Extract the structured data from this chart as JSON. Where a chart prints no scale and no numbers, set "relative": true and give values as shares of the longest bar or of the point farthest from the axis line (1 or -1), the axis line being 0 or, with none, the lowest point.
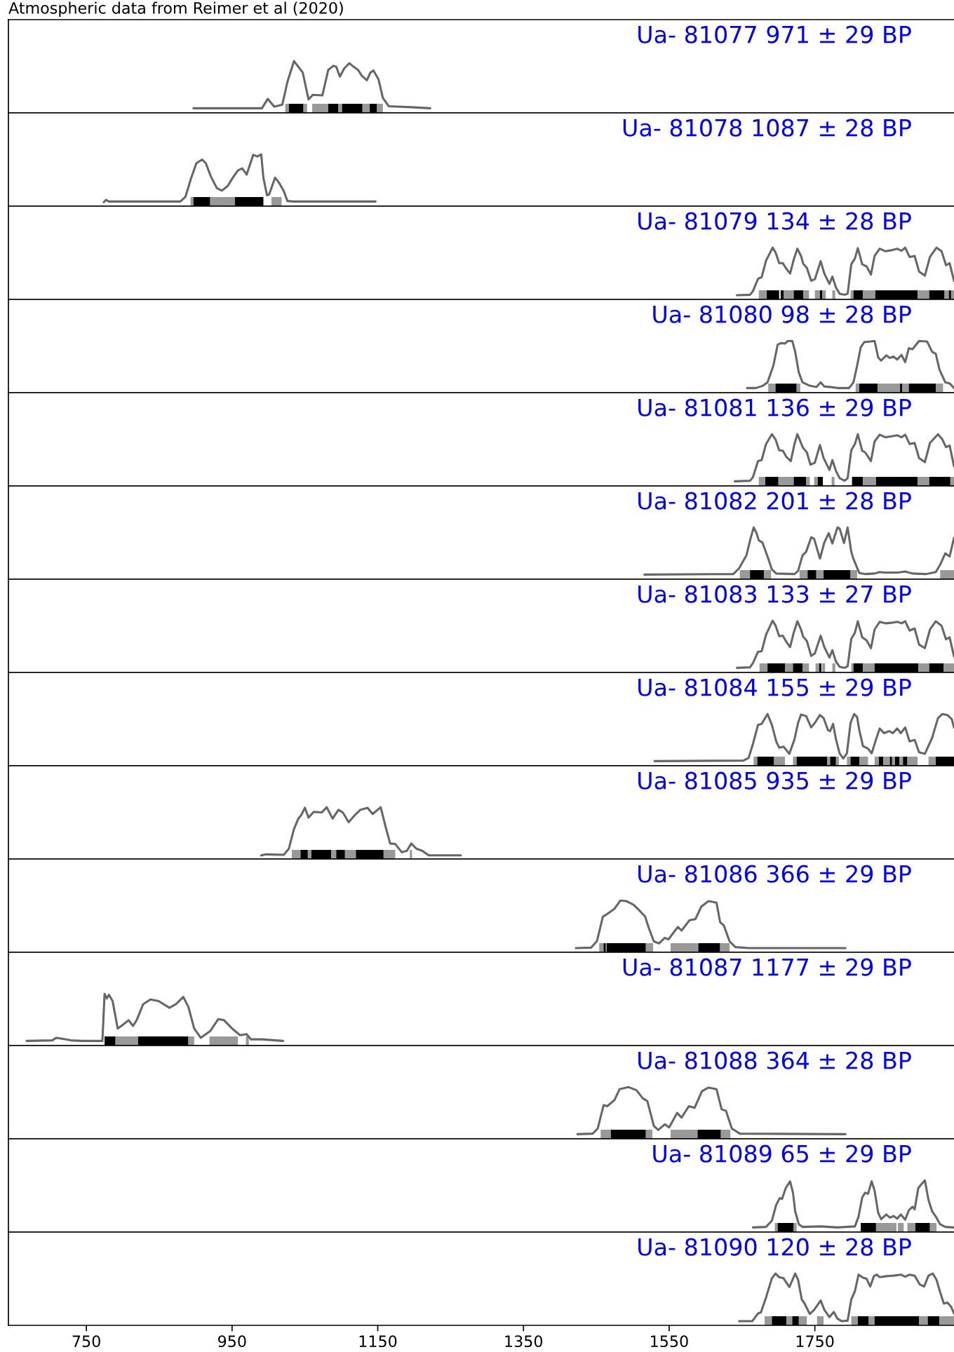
{
  "chart_data": [
    {
      "type": "line",
      "title": "Ua- 81077 971 ± 29 BP",
      "annotations": [
        "Atmospheric data from Reimer et al (2020)"
      ],
      "relative": true,
      "xlim": [
        643,
        1941
      ],
      "tick_labels": false,
      "color": "#666666",
      "x": [
        897,
        991,
        999,
        1008,
        1019,
        1026,
        1035,
        1041,
        1047,
        1055,
        1061,
        1074,
        1082,
        1089,
        1093,
        1098,
        1104,
        1111,
        1117,
        1123,
        1128,
        1135,
        1140,
        1144,
        1151,
        1157,
        1165,
        1196,
        1222
      ],
      "values": [
        0.09,
        0.09,
        0.27,
        0.12,
        0.16,
        0.6,
        1.0,
        0.89,
        0.78,
        0.26,
        0.35,
        0.34,
        0.83,
        0.91,
        0.89,
        0.7,
        0.86,
        0.96,
        0.89,
        0.83,
        0.72,
        0.63,
        0.78,
        0.82,
        0.65,
        0.29,
        0.13,
        0.11,
        0.09
      ],
      "bands": [
        {
          "axis": "x",
          "from": 1023,
          "to": 1028,
          "color": "#999999"
        },
        {
          "axis": "x",
          "from": 1028,
          "to": 1048,
          "color": "#000000"
        },
        {
          "axis": "x",
          "from": 1048,
          "to": 1053,
          "color": "#999999"
        },
        {
          "axis": "x",
          "from": 1060,
          "to": 1082,
          "color": "#999999"
        },
        {
          "axis": "x",
          "from": 1082,
          "to": 1096,
          "color": "#000000"
        },
        {
          "axis": "x",
          "from": 1096,
          "to": 1101,
          "color": "#999999"
        },
        {
          "axis": "x",
          "from": 1101,
          "to": 1129,
          "color": "#000000"
        },
        {
          "axis": "x",
          "from": 1129,
          "to": 1139,
          "color": "#999999"
        },
        {
          "axis": "x",
          "from": 1139,
          "to": 1149,
          "color": "#000000"
        },
        {
          "axis": "x",
          "from": 1149,
          "to": 1157,
          "color": "#999999"
        }
      ]
    },
    {
      "type": "line",
      "title": "Ua- 81078 1087 ± 28 BP",
      "relative": true,
      "xlim": [
        643,
        1941
      ],
      "tick_labels": false,
      "color": "#666666",
      "x": [
        774,
        777,
        781,
        838,
        879,
        886,
        894,
        901,
        909,
        914,
        921,
        929,
        936,
        944,
        951,
        958,
        964,
        970,
        974,
        979,
        985,
        990,
        993,
        998,
        1001,
        1009,
        1015,
        1021,
        1026,
        1034,
        1147
      ],
      "values": [
        0.08,
        0.12,
        0.09,
        0.09,
        0.09,
        0.18,
        0.55,
        0.83,
        0.9,
        0.83,
        0.57,
        0.35,
        0.3,
        0.39,
        0.55,
        0.69,
        0.73,
        0.61,
        0.78,
        0.99,
        0.96,
        1.0,
        0.55,
        0.21,
        0.23,
        0.55,
        0.44,
        0.29,
        0.1,
        0.09,
        0.09
      ],
      "bands": [
        {
          "axis": "x",
          "from": 893,
          "to": 897,
          "color": "#999999"
        },
        {
          "axis": "x",
          "from": 897,
          "to": 920,
          "color": "#000000"
        },
        {
          "axis": "x",
          "from": 920,
          "to": 954,
          "color": "#999999"
        },
        {
          "axis": "x",
          "from": 954,
          "to": 993,
          "color": "#000000"
        },
        {
          "axis": "x",
          "from": 1004,
          "to": 1018,
          "color": "#999999"
        }
      ]
    },
    {
      "type": "line",
      "title": "Ua- 81079 134 ± 28 BP",
      "relative": true,
      "xlim": [
        643,
        1941
      ],
      "tick_labels": false,
      "color": "#666666",
      "x": [
        1643,
        1661,
        1665,
        1672,
        1677,
        1683,
        1692,
        1696,
        1701,
        1706,
        1710,
        1716,
        1721,
        1726,
        1731,
        1734,
        1739,
        1745,
        1750,
        1758,
        1763,
        1770,
        1774,
        1779,
        1784,
        1791,
        1795,
        1800,
        1805,
        1809,
        1815,
        1821,
        1827,
        1832,
        1839,
        1847,
        1855,
        1863,
        1869,
        1874,
        1880,
        1887,
        1893,
        1901,
        1908,
        1917,
        1924,
        1930,
        1935,
        1941
      ],
      "values": [
        0.08,
        0.09,
        0.16,
        0.4,
        0.43,
        0.75,
        1.0,
        0.91,
        0.7,
        0.7,
        0.61,
        0.5,
        0.77,
        0.98,
        0.84,
        0.69,
        0.61,
        0.36,
        0.39,
        0.74,
        0.5,
        0.3,
        0.44,
        0.23,
        0.11,
        0.09,
        0.11,
        0.68,
        0.79,
        0.99,
        0.68,
        0.64,
        0.48,
        0.84,
        0.98,
        0.93,
        0.95,
        0.98,
        0.94,
        1.0,
        0.82,
        0.84,
        0.54,
        0.46,
        0.82,
        1.0,
        0.93,
        0.66,
        0.7,
        0.36
      ],
      "bands": [
        {
          "axis": "x",
          "from": 1673,
          "to": 1684,
          "color": "#999999"
        },
        {
          "axis": "x",
          "from": 1684,
          "to": 1701,
          "color": "#000000"
        },
        {
          "axis": "x",
          "from": 1703,
          "to": 1707,
          "color": "#000000"
        },
        {
          "axis": "x",
          "from": 1707,
          "to": 1721,
          "color": "#999999"
        },
        {
          "axis": "x",
          "from": 1721,
          "to": 1734,
          "color": "#000000"
        },
        {
          "axis": "x",
          "from": 1734,
          "to": 1742,
          "color": "#999999"
        },
        {
          "axis": "x",
          "from": 1750,
          "to": 1757,
          "color": "#999999"
        },
        {
          "axis": "x",
          "from": 1757,
          "to": 1760,
          "color": "#000000"
        },
        {
          "axis": "x",
          "from": 1760,
          "to": 1765,
          "color": "#999999"
        },
        {
          "axis": "x",
          "from": 1774,
          "to": 1778,
          "color": "#999999"
        },
        {
          "axis": "x",
          "from": 1799,
          "to": 1803,
          "color": "#999999"
        },
        {
          "axis": "x",
          "from": 1803,
          "to": 1816,
          "color": "#000000"
        },
        {
          "axis": "x",
          "from": 1816,
          "to": 1833,
          "color": "#999999"
        },
        {
          "axis": "x",
          "from": 1833,
          "to": 1891,
          "color": "#000000"
        },
        {
          "axis": "x",
          "from": 1891,
          "to": 1907,
          "color": "#999999"
        },
        {
          "axis": "x",
          "from": 1907,
          "to": 1928,
          "color": "#000000"
        },
        {
          "axis": "x",
          "from": 1928,
          "to": 1934,
          "color": "#999999"
        },
        {
          "axis": "x",
          "from": 1934,
          "to": 1937,
          "color": "#000000"
        },
        {
          "axis": "x",
          "from": 1937,
          "to": 1941,
          "color": "#999999"
        }
      ]
    },
    {
      "type": "line",
      "title": "Ua- 81080 98 ± 28 BP",
      "relative": true,
      "xlim": [
        643,
        1941
      ],
      "tick_labels": false,
      "color": "#666666",
      "x": [
        1657,
        1669,
        1678,
        1685,
        1693,
        1699,
        1704,
        1709,
        1713,
        1719,
        1723,
        1728,
        1733,
        1742,
        1752,
        1758,
        1763,
        1771,
        1781,
        1797,
        1803,
        1808,
        1813,
        1818,
        1826,
        1832,
        1837,
        1841,
        1848,
        1853,
        1858,
        1863,
        1869,
        1874,
        1879,
        1884,
        1893,
        1904,
        1911,
        1916,
        1921,
        1929,
        1935,
        1941
      ],
      "values": [
        0.09,
        0.09,
        0.13,
        0.2,
        0.52,
        0.93,
        0.96,
        0.95,
        1.0,
        1.0,
        0.79,
        0.39,
        0.2,
        0.14,
        0.11,
        0.2,
        0.12,
        0.11,
        0.09,
        0.09,
        0.2,
        0.52,
        0.88,
        0.98,
        0.99,
        1.0,
        0.68,
        0.62,
        0.72,
        0.67,
        0.7,
        0.64,
        0.73,
        0.59,
        0.86,
        0.84,
        1.0,
        0.99,
        0.79,
        0.75,
        0.45,
        0.2,
        0.18,
        0.09
      ],
      "bands": [
        {
          "axis": "x",
          "from": 1686,
          "to": 1696,
          "color": "#999999"
        },
        {
          "axis": "x",
          "from": 1696,
          "to": 1725,
          "color": "#000000"
        },
        {
          "axis": "x",
          "from": 1725,
          "to": 1730,
          "color": "#999999"
        },
        {
          "axis": "x",
          "from": 1806,
          "to": 1811,
          "color": "#999999"
        },
        {
          "axis": "x",
          "from": 1811,
          "to": 1836,
          "color": "#000000"
        },
        {
          "axis": "x",
          "from": 1836,
          "to": 1867,
          "color": "#999999"
        },
        {
          "axis": "x",
          "from": 1867,
          "to": 1870,
          "color": "#000000"
        },
        {
          "axis": "x",
          "from": 1870,
          "to": 1879,
          "color": "#999999"
        },
        {
          "axis": "x",
          "from": 1879,
          "to": 1916,
          "color": "#000000"
        },
        {
          "axis": "x",
          "from": 1916,
          "to": 1926,
          "color": "#999999"
        }
      ]
    },
    {
      "type": "line",
      "title": "Ua- 81081 136 ± 29 BP",
      "relative": true,
      "xlim": [
        643,
        1941
      ],
      "tick_labels": false,
      "color": "#666666",
      "x": [
        1640,
        1661,
        1665,
        1672,
        1677,
        1683,
        1691,
        1696,
        1701,
        1706,
        1711,
        1717,
        1722,
        1726,
        1731,
        1734,
        1739,
        1744,
        1750,
        1757,
        1762,
        1770,
        1774,
        1779,
        1784,
        1791,
        1795,
        1800,
        1805,
        1809,
        1815,
        1819,
        1827,
        1832,
        1839,
        1847,
        1855,
        1863,
        1869,
        1874,
        1880,
        1887,
        1893,
        1901,
        1908,
        1919,
        1925,
        1930,
        1935,
        1941
      ],
      "values": [
        0.09,
        0.1,
        0.17,
        0.48,
        0.5,
        0.81,
        1.0,
        0.9,
        0.69,
        0.68,
        0.56,
        0.48,
        0.81,
        1.0,
        0.83,
        0.73,
        0.65,
        0.41,
        0.45,
        0.79,
        0.54,
        0.31,
        0.5,
        0.29,
        0.15,
        0.1,
        0.15,
        0.69,
        0.81,
        1.0,
        0.68,
        0.65,
        0.48,
        0.86,
        0.99,
        0.94,
        0.96,
        0.98,
        0.94,
        0.99,
        0.81,
        0.83,
        0.54,
        0.46,
        0.83,
        1.0,
        0.9,
        0.75,
        0.78,
        0.38
      ],
      "bands": [
        {
          "axis": "x",
          "from": 1673,
          "to": 1682,
          "color": "#999999"
        },
        {
          "axis": "x",
          "from": 1682,
          "to": 1700,
          "color": "#000000"
        },
        {
          "axis": "x",
          "from": 1700,
          "to": 1721,
          "color": "#999999"
        },
        {
          "axis": "x",
          "from": 1721,
          "to": 1738,
          "color": "#000000"
        },
        {
          "axis": "x",
          "from": 1738,
          "to": 1743,
          "color": "#999999"
        },
        {
          "axis": "x",
          "from": 1749,
          "to": 1754,
          "color": "#999999"
        },
        {
          "axis": "x",
          "from": 1754,
          "to": 1761,
          "color": "#000000"
        },
        {
          "axis": "x",
          "from": 1773,
          "to": 1777,
          "color": "#999999"
        },
        {
          "axis": "x",
          "from": 1801,
          "to": 1816,
          "color": "#000000"
        },
        {
          "axis": "x",
          "from": 1816,
          "to": 1834,
          "color": "#999999"
        },
        {
          "axis": "x",
          "from": 1834,
          "to": 1891,
          "color": "#000000"
        },
        {
          "axis": "x",
          "from": 1891,
          "to": 1907,
          "color": "#999999"
        },
        {
          "axis": "x",
          "from": 1907,
          "to": 1936,
          "color": "#000000"
        },
        {
          "axis": "x",
          "from": 1936,
          "to": 1941,
          "color": "#999999"
        }
      ]
    },
    {
      "type": "line",
      "title": "Ua- 81082 201 ± 28 BP",
      "relative": true,
      "xlim": [
        643,
        1941
      ],
      "tick_labels": false,
      "color": "#666666",
      "x": [
        1516,
        1638,
        1646,
        1656,
        1662,
        1666,
        1670,
        1673,
        1678,
        1685,
        1691,
        1697,
        1722,
        1727,
        1733,
        1738,
        1745,
        1749,
        1757,
        1763,
        1769,
        1774,
        1781,
        1784,
        1790,
        1795,
        1800,
        1803,
        1811,
        1819,
        1832,
        1839,
        1845,
        1864,
        1874,
        1884,
        1903,
        1916,
        1922,
        1929,
        1935,
        1941
      ],
      "values": [
        0.09,
        0.1,
        0.21,
        0.46,
        0.8,
        1.0,
        0.89,
        0.75,
        0.71,
        0.44,
        0.19,
        0.11,
        0.1,
        0.16,
        0.46,
        0.53,
        0.81,
        0.78,
        0.4,
        0.71,
        0.89,
        0.69,
        1.0,
        0.98,
        0.7,
        1.0,
        0.53,
        0.39,
        0.12,
        0.1,
        0.11,
        0.14,
        0.13,
        0.13,
        0.15,
        0.11,
        0.1,
        0.14,
        0.28,
        0.5,
        0.44,
        0.8
      ],
      "bands": [
        {
          "axis": "x",
          "from": 1647,
          "to": 1661,
          "color": "#999999"
        },
        {
          "axis": "x",
          "from": 1661,
          "to": 1680,
          "color": "#000000"
        },
        {
          "axis": "x",
          "from": 1680,
          "to": 1690,
          "color": "#999999"
        },
        {
          "axis": "x",
          "from": 1729,
          "to": 1740,
          "color": "#999999"
        },
        {
          "axis": "x",
          "from": 1740,
          "to": 1752,
          "color": "#000000"
        },
        {
          "axis": "x",
          "from": 1752,
          "to": 1762,
          "color": "#999999"
        },
        {
          "axis": "x",
          "from": 1762,
          "to": 1799,
          "color": "#000000"
        },
        {
          "axis": "x",
          "from": 1799,
          "to": 1808,
          "color": "#999999"
        },
        {
          "axis": "x",
          "from": 1922,
          "to": 1941,
          "color": "#999999"
        }
      ]
    },
    {
      "type": "line",
      "title": "Ua- 81083 133 ± 27 BP",
      "relative": true,
      "xlim": [
        643,
        1941
      ],
      "tick_labels": false,
      "color": "#666666",
      "x": [
        1643,
        1661,
        1665,
        1672,
        1677,
        1683,
        1692,
        1696,
        1701,
        1706,
        1711,
        1716,
        1721,
        1726,
        1731,
        1734,
        1739,
        1745,
        1750,
        1758,
        1763,
        1770,
        1774,
        1779,
        1784,
        1791,
        1795,
        1800,
        1805,
        1809,
        1815,
        1821,
        1827,
        1832,
        1839,
        1847,
        1855,
        1863,
        1869,
        1874,
        1880,
        1887,
        1893,
        1901,
        1908,
        1916,
        1924,
        1930,
        1935,
        1941
      ],
      "values": [
        0.09,
        0.1,
        0.18,
        0.4,
        0.41,
        0.73,
        1.0,
        0.91,
        0.7,
        0.71,
        0.59,
        0.49,
        0.77,
        0.99,
        0.83,
        0.69,
        0.61,
        0.32,
        0.37,
        0.71,
        0.49,
        0.29,
        0.43,
        0.21,
        0.11,
        0.09,
        0.12,
        0.65,
        0.77,
        0.99,
        0.68,
        0.62,
        0.47,
        0.83,
        0.98,
        0.95,
        0.96,
        0.98,
        0.95,
        0.99,
        0.81,
        0.85,
        0.54,
        0.47,
        0.83,
        0.99,
        0.9,
        0.64,
        0.68,
        0.31
      ],
      "bands": [
        {
          "axis": "x",
          "from": 1674,
          "to": 1685,
          "color": "#999999"
        },
        {
          "axis": "x",
          "from": 1685,
          "to": 1709,
          "color": "#000000"
        },
        {
          "axis": "x",
          "from": 1709,
          "to": 1720,
          "color": "#999999"
        },
        {
          "axis": "x",
          "from": 1720,
          "to": 1733,
          "color": "#000000"
        },
        {
          "axis": "x",
          "from": 1733,
          "to": 1742,
          "color": "#999999"
        },
        {
          "axis": "x",
          "from": 1751,
          "to": 1756,
          "color": "#999999"
        },
        {
          "axis": "x",
          "from": 1756,
          "to": 1759,
          "color": "#000000"
        },
        {
          "axis": "x",
          "from": 1760,
          "to": 1764,
          "color": "#999999"
        },
        {
          "axis": "x",
          "from": 1774,
          "to": 1778,
          "color": "#999999"
        },
        {
          "axis": "x",
          "from": 1800,
          "to": 1803,
          "color": "#999999"
        },
        {
          "axis": "x",
          "from": 1803,
          "to": 1816,
          "color": "#000000"
        },
        {
          "axis": "x",
          "from": 1816,
          "to": 1832,
          "color": "#999999"
        },
        {
          "axis": "x",
          "from": 1832,
          "to": 1892,
          "color": "#000000"
        },
        {
          "axis": "x",
          "from": 1892,
          "to": 1907,
          "color": "#999999"
        },
        {
          "axis": "x",
          "from": 1907,
          "to": 1927,
          "color": "#000000"
        },
        {
          "axis": "x",
          "from": 1927,
          "to": 1941,
          "color": "#999999"
        }
      ]
    },
    {
      "type": "line",
      "title": "Ua- 81084 155 ± 29 BP",
      "relative": true,
      "xlim": [
        643,
        1941
      ],
      "tick_labels": false,
      "color": "#666666",
      "x": [
        1530,
        1652,
        1659,
        1665,
        1672,
        1677,
        1685,
        1691,
        1697,
        1701,
        1707,
        1715,
        1722,
        1727,
        1731,
        1738,
        1745,
        1750,
        1757,
        1762,
        1768,
        1771,
        1775,
        1779,
        1784,
        1789,
        1794,
        1799,
        1804,
        1808,
        1811,
        1816,
        1823,
        1828,
        1834,
        1839,
        1845,
        1852,
        1857,
        1863,
        1868,
        1874,
        1880,
        1887,
        1893,
        1901,
        1911,
        1919,
        1925,
        1932,
        1938,
        1941
      ],
      "values": [
        0.09,
        0.1,
        0.15,
        0.42,
        0.79,
        0.81,
        1.0,
        0.79,
        0.47,
        0.35,
        0.37,
        0.23,
        0.51,
        0.83,
        0.99,
        0.96,
        0.74,
        0.83,
        0.98,
        0.92,
        0.69,
        0.67,
        0.81,
        0.51,
        0.24,
        0.14,
        0.24,
        0.83,
        1.0,
        0.94,
        0.69,
        0.38,
        0.33,
        0.24,
        0.51,
        0.72,
        0.63,
        0.67,
        0.63,
        0.72,
        0.63,
        0.74,
        0.47,
        0.5,
        0.26,
        0.23,
        0.54,
        0.92,
        1.0,
        0.98,
        0.9,
        0.74
      ],
      "bands": [
        {
          "axis": "x",
          "from": 1666,
          "to": 1671,
          "color": "#999999"
        },
        {
          "axis": "x",
          "from": 1671,
          "to": 1694,
          "color": "#000000"
        },
        {
          "axis": "x",
          "from": 1694,
          "to": 1709,
          "color": "#999999"
        },
        {
          "axis": "x",
          "from": 1720,
          "to": 1725,
          "color": "#999999"
        },
        {
          "axis": "x",
          "from": 1725,
          "to": 1767,
          "color": "#000000"
        },
        {
          "axis": "x",
          "from": 1767,
          "to": 1771,
          "color": "#999999"
        },
        {
          "axis": "x",
          "from": 1771,
          "to": 1779,
          "color": "#000000"
        },
        {
          "axis": "x",
          "from": 1779,
          "to": 1783,
          "color": "#999999"
        },
        {
          "axis": "x",
          "from": 1794,
          "to": 1799,
          "color": "#999999"
        },
        {
          "axis": "x",
          "from": 1799,
          "to": 1811,
          "color": "#000000"
        },
        {
          "axis": "x",
          "from": 1811,
          "to": 1823,
          "color": "#999999"
        },
        {
          "axis": "x",
          "from": 1832,
          "to": 1838,
          "color": "#999999"
        },
        {
          "axis": "x",
          "from": 1838,
          "to": 1844,
          "color": "#000000"
        },
        {
          "axis": "x",
          "from": 1844,
          "to": 1853,
          "color": "#999999"
        },
        {
          "axis": "x",
          "from": 1853,
          "to": 1856,
          "color": "#000000"
        },
        {
          "axis": "x",
          "from": 1856,
          "to": 1860,
          "color": "#999999"
        },
        {
          "axis": "x",
          "from": 1860,
          "to": 1866,
          "color": "#000000"
        },
        {
          "axis": "x",
          "from": 1866,
          "to": 1871,
          "color": "#999999"
        },
        {
          "axis": "x",
          "from": 1871,
          "to": 1877,
          "color": "#000000"
        },
        {
          "axis": "x",
          "from": 1877,
          "to": 1891,
          "color": "#999999"
        },
        {
          "axis": "x",
          "from": 1906,
          "to": 1916,
          "color": "#999999"
        },
        {
          "axis": "x",
          "from": 1916,
          "to": 1941,
          "color": "#000000"
        }
      ]
    },
    {
      "type": "line",
      "title": "Ua- 81085 935 ± 29 BP",
      "relative": true,
      "xlim": [
        643,
        1941
      ],
      "tick_labels": false,
      "color": "#666666",
      "x": [
        990,
        997,
        1021,
        1028,
        1035,
        1041,
        1045,
        1050,
        1055,
        1062,
        1073,
        1080,
        1088,
        1096,
        1102,
        1110,
        1118,
        1126,
        1136,
        1143,
        1154,
        1161,
        1167,
        1174,
        1183,
        1190,
        1196,
        1203,
        1211,
        1220,
        1264
      ],
      "values": [
        0.07,
        0.09,
        0.08,
        0.2,
        0.58,
        0.78,
        0.85,
        0.99,
        0.8,
        0.91,
        0.9,
        1.0,
        0.78,
        0.95,
        0.9,
        0.71,
        0.84,
        0.95,
        0.99,
        0.87,
        1.0,
        0.61,
        0.3,
        0.29,
        0.13,
        0.16,
        0.3,
        0.2,
        0.16,
        0.07,
        0.07
      ],
      "bands": [
        {
          "axis": "x",
          "from": 1032,
          "to": 1044,
          "color": "#999999"
        },
        {
          "axis": "x",
          "from": 1044,
          "to": 1054,
          "color": "#000000"
        },
        {
          "axis": "x",
          "from": 1054,
          "to": 1059,
          "color": "#999999"
        },
        {
          "axis": "x",
          "from": 1059,
          "to": 1086,
          "color": "#000000"
        },
        {
          "axis": "x",
          "from": 1086,
          "to": 1093,
          "color": "#999999"
        },
        {
          "axis": "x",
          "from": 1093,
          "to": 1105,
          "color": "#000000"
        },
        {
          "axis": "x",
          "from": 1105,
          "to": 1120,
          "color": "#999999"
        },
        {
          "axis": "x",
          "from": 1120,
          "to": 1158,
          "color": "#000000"
        },
        {
          "axis": "x",
          "from": 1158,
          "to": 1174,
          "color": "#999999"
        },
        {
          "axis": "x",
          "from": 1194,
          "to": 1197,
          "color": "#999999"
        }
      ]
    },
    {
      "type": "line",
      "title": "Ua- 81086 366 ± 29 BP",
      "relative": true,
      "xlim": [
        643,
        1941
      ],
      "tick_labels": false,
      "color": "#666666",
      "x": [
        1422,
        1443,
        1451,
        1459,
        1464,
        1475,
        1483,
        1491,
        1501,
        1509,
        1517,
        1522,
        1529,
        1536,
        1544,
        1549,
        1557,
        1562,
        1567,
        1578,
        1586,
        1594,
        1604,
        1615,
        1620,
        1625,
        1633,
        1641,
        1660,
        1792
      ],
      "values": [
        0.08,
        0.09,
        0.22,
        0.69,
        0.73,
        0.84,
        1.0,
        0.99,
        0.92,
        0.81,
        0.69,
        0.47,
        0.21,
        0.17,
        0.28,
        0.25,
        0.4,
        0.49,
        0.42,
        0.62,
        0.64,
        0.88,
        0.99,
        0.96,
        0.58,
        0.52,
        0.21,
        0.1,
        0.08,
        0.08
      ],
      "bands": [
        {
          "axis": "x",
          "from": 1454,
          "to": 1460,
          "color": "#999999"
        },
        {
          "axis": "x",
          "from": 1460,
          "to": 1463,
          "color": "#000000"
        },
        {
          "axis": "x",
          "from": 1464,
          "to": 1518,
          "color": "#000000"
        },
        {
          "axis": "x",
          "from": 1518,
          "to": 1528,
          "color": "#999999"
        },
        {
          "axis": "x",
          "from": 1552,
          "to": 1590,
          "color": "#999999"
        },
        {
          "axis": "x",
          "from": 1590,
          "to": 1620,
          "color": "#000000"
        },
        {
          "axis": "x",
          "from": 1620,
          "to": 1633,
          "color": "#999999"
        }
      ]
    },
    {
      "type": "line",
      "title": "Ua- 81087 1177 ± 29 BP",
      "relative": true,
      "xlim": [
        643,
        1941
      ],
      "tick_labels": false,
      "color": "#666666",
      "x": [
        668,
        703,
        709,
        718,
        729,
        744,
        772,
        775,
        778,
        781,
        786,
        793,
        798,
        808,
        814,
        819,
        828,
        838,
        849,
        864,
        873,
        883,
        890,
        898,
        907,
        920,
        931,
        939,
        950,
        961,
        970,
        976,
        991,
        1020
      ],
      "values": [
        0.09,
        0.1,
        0.15,
        0.13,
        0.1,
        0.09,
        0.09,
        1.0,
        0.91,
        0.98,
        0.86,
        0.33,
        0.38,
        0.49,
        0.38,
        0.49,
        0.8,
        0.89,
        0.86,
        0.73,
        0.8,
        0.94,
        0.75,
        0.33,
        0.15,
        0.28,
        0.51,
        0.49,
        0.33,
        0.2,
        0.22,
        0.12,
        0.12,
        0.09
      ],
      "bands": [
        {
          "axis": "x",
          "from": 775,
          "to": 790,
          "color": "#000000"
        },
        {
          "axis": "x",
          "from": 790,
          "to": 821,
          "color": "#999999"
        },
        {
          "axis": "x",
          "from": 821,
          "to": 890,
          "color": "#000000"
        },
        {
          "axis": "x",
          "from": 890,
          "to": 898,
          "color": "#999999"
        },
        {
          "axis": "x",
          "from": 919,
          "to": 958,
          "color": "#999999"
        },
        {
          "axis": "x",
          "from": 969,
          "to": 973,
          "color": "#999999"
        }
      ]
    },
    {
      "type": "line",
      "title": "Ua- 81088 364 ± 28 BP",
      "relative": true,
      "xlim": [
        643,
        1941
      ],
      "tick_labels": false,
      "color": "#666666",
      "x": [
        1424,
        1445,
        1452,
        1460,
        1465,
        1475,
        1482,
        1494,
        1505,
        1514,
        1520,
        1529,
        1535,
        1544,
        1550,
        1561,
        1567,
        1577,
        1585,
        1595,
        1604,
        1615,
        1622,
        1628,
        1636,
        1647,
        1792
      ],
      "values": [
        0.09,
        0.1,
        0.2,
        0.65,
        0.63,
        0.75,
        0.96,
        1.0,
        0.94,
        0.78,
        0.73,
        0.25,
        0.17,
        0.28,
        0.22,
        0.5,
        0.41,
        0.63,
        0.6,
        0.92,
        0.99,
        0.96,
        0.57,
        0.54,
        0.2,
        0.1,
        0.09
      ],
      "bands": [
        {
          "axis": "x",
          "from": 1456,
          "to": 1470,
          "color": "#999999"
        },
        {
          "axis": "x",
          "from": 1470,
          "to": 1518,
          "color": "#000000"
        },
        {
          "axis": "x",
          "from": 1518,
          "to": 1527,
          "color": "#999999"
        },
        {
          "axis": "x",
          "from": 1552,
          "to": 1589,
          "color": "#999999"
        },
        {
          "axis": "x",
          "from": 1589,
          "to": 1621,
          "color": "#000000"
        },
        {
          "axis": "x",
          "from": 1621,
          "to": 1634,
          "color": "#999999"
        }
      ]
    },
    {
      "type": "line",
      "title": "Ua- 81089 65 ± 29 BP",
      "relative": true,
      "xlim": [
        643,
        1941
      ],
      "tick_labels": false,
      "color": "#666666",
      "x": [
        1665,
        1683,
        1691,
        1697,
        1702,
        1705,
        1710,
        1716,
        1720,
        1723,
        1728,
        1733,
        1758,
        1781,
        1805,
        1810,
        1815,
        1819,
        1823,
        1828,
        1832,
        1837,
        1841,
        1848,
        1853,
        1858,
        1863,
        1868,
        1874,
        1879,
        1884,
        1887,
        1892,
        1896,
        1901,
        1906,
        1911,
        1916,
        1922,
        1929,
        1941
      ],
      "values": [
        0.09,
        0.1,
        0.22,
        0.53,
        0.66,
        0.64,
        0.85,
        0.98,
        0.76,
        0.4,
        0.15,
        0.1,
        0.11,
        0.09,
        0.11,
        0.3,
        0.67,
        0.76,
        0.74,
        0.98,
        0.8,
        0.37,
        0.25,
        0.34,
        0.28,
        0.31,
        0.26,
        0.34,
        0.24,
        0.42,
        0.49,
        0.44,
        0.85,
        0.92,
        1.0,
        0.62,
        0.4,
        0.3,
        0.15,
        0.1,
        0.09
      ],
      "bands": [
        {
          "axis": "x",
          "from": 1695,
          "to": 1699,
          "color": "#999999"
        },
        {
          "axis": "x",
          "from": 1699,
          "to": 1721,
          "color": "#000000"
        },
        {
          "axis": "x",
          "from": 1721,
          "to": 1725,
          "color": "#999999"
        },
        {
          "axis": "x",
          "from": 1813,
          "to": 1834,
          "color": "#000000"
        },
        {
          "axis": "x",
          "from": 1834,
          "to": 1862,
          "color": "#999999"
        },
        {
          "axis": "x",
          "from": 1864,
          "to": 1872,
          "color": "#999999"
        },
        {
          "axis": "x",
          "from": 1877,
          "to": 1888,
          "color": "#999999"
        },
        {
          "axis": "x",
          "from": 1888,
          "to": 1908,
          "color": "#000000"
        },
        {
          "axis": "x",
          "from": 1908,
          "to": 1917,
          "color": "#999999"
        }
      ]
    },
    {
      "type": "line",
      "title": "Ua- 81090 120 ± 28 BP",
      "relative": true,
      "xlim": [
        643,
        1941
      ],
      "xticks": [
        750,
        950,
        1150,
        1350,
        1550,
        1750
      ],
      "tick_labels": "x",
      "color": "#666666",
      "x": [
        1646,
        1664,
        1672,
        1676,
        1683,
        1691,
        1696,
        1701,
        1707,
        1715,
        1723,
        1727,
        1732,
        1736,
        1743,
        1749,
        1758,
        1763,
        1770,
        1776,
        1781,
        1787,
        1795,
        1800,
        1805,
        1810,
        1816,
        1821,
        1826,
        1831,
        1835,
        1839,
        1848,
        1858,
        1868,
        1874,
        1880,
        1887,
        1894,
        1900,
        1906,
        1912,
        1917,
        1922,
        1927,
        1932,
        1937,
        1941
      ],
      "values": [
        0.08,
        0.08,
        0.23,
        0.25,
        0.54,
        0.91,
        1.0,
        0.93,
        0.91,
        0.74,
        1.0,
        0.88,
        0.5,
        0.42,
        0.22,
        0.3,
        0.48,
        0.3,
        0.16,
        0.26,
        0.13,
        0.08,
        0.09,
        0.5,
        0.66,
        0.98,
        0.92,
        0.9,
        0.75,
        0.95,
        0.98,
        0.93,
        0.95,
        0.96,
        0.98,
        0.94,
        0.98,
        0.96,
        0.79,
        0.75,
        0.96,
        1.0,
        0.88,
        0.64,
        0.42,
        0.44,
        0.36,
        0.23
      ],
      "bands": [
        {
          "axis": "x",
          "from": 1681,
          "to": 1691,
          "color": "#999999"
        },
        {
          "axis": "x",
          "from": 1691,
          "to": 1711,
          "color": "#000000"
        },
        {
          "axis": "x",
          "from": 1711,
          "to": 1719,
          "color": "#999999"
        },
        {
          "axis": "x",
          "from": 1719,
          "to": 1728,
          "color": "#000000"
        },
        {
          "axis": "x",
          "from": 1728,
          "to": 1739,
          "color": "#999999"
        },
        {
          "axis": "x",
          "from": 1753,
          "to": 1762,
          "color": "#999999"
        },
        {
          "axis": "x",
          "from": 1800,
          "to": 1809,
          "color": "#999999"
        },
        {
          "axis": "x",
          "from": 1809,
          "to": 1824,
          "color": "#000000"
        },
        {
          "axis": "x",
          "from": 1824,
          "to": 1832,
          "color": "#999999"
        },
        {
          "axis": "x",
          "from": 1832,
          "to": 1893,
          "color": "#000000"
        },
        {
          "axis": "x",
          "from": 1893,
          "to": 1905,
          "color": "#999999"
        },
        {
          "axis": "x",
          "from": 1905,
          "to": 1921,
          "color": "#000000"
        },
        {
          "axis": "x",
          "from": 1921,
          "to": 1941,
          "color": "#999999"
        }
      ]
    }
  ]
}
